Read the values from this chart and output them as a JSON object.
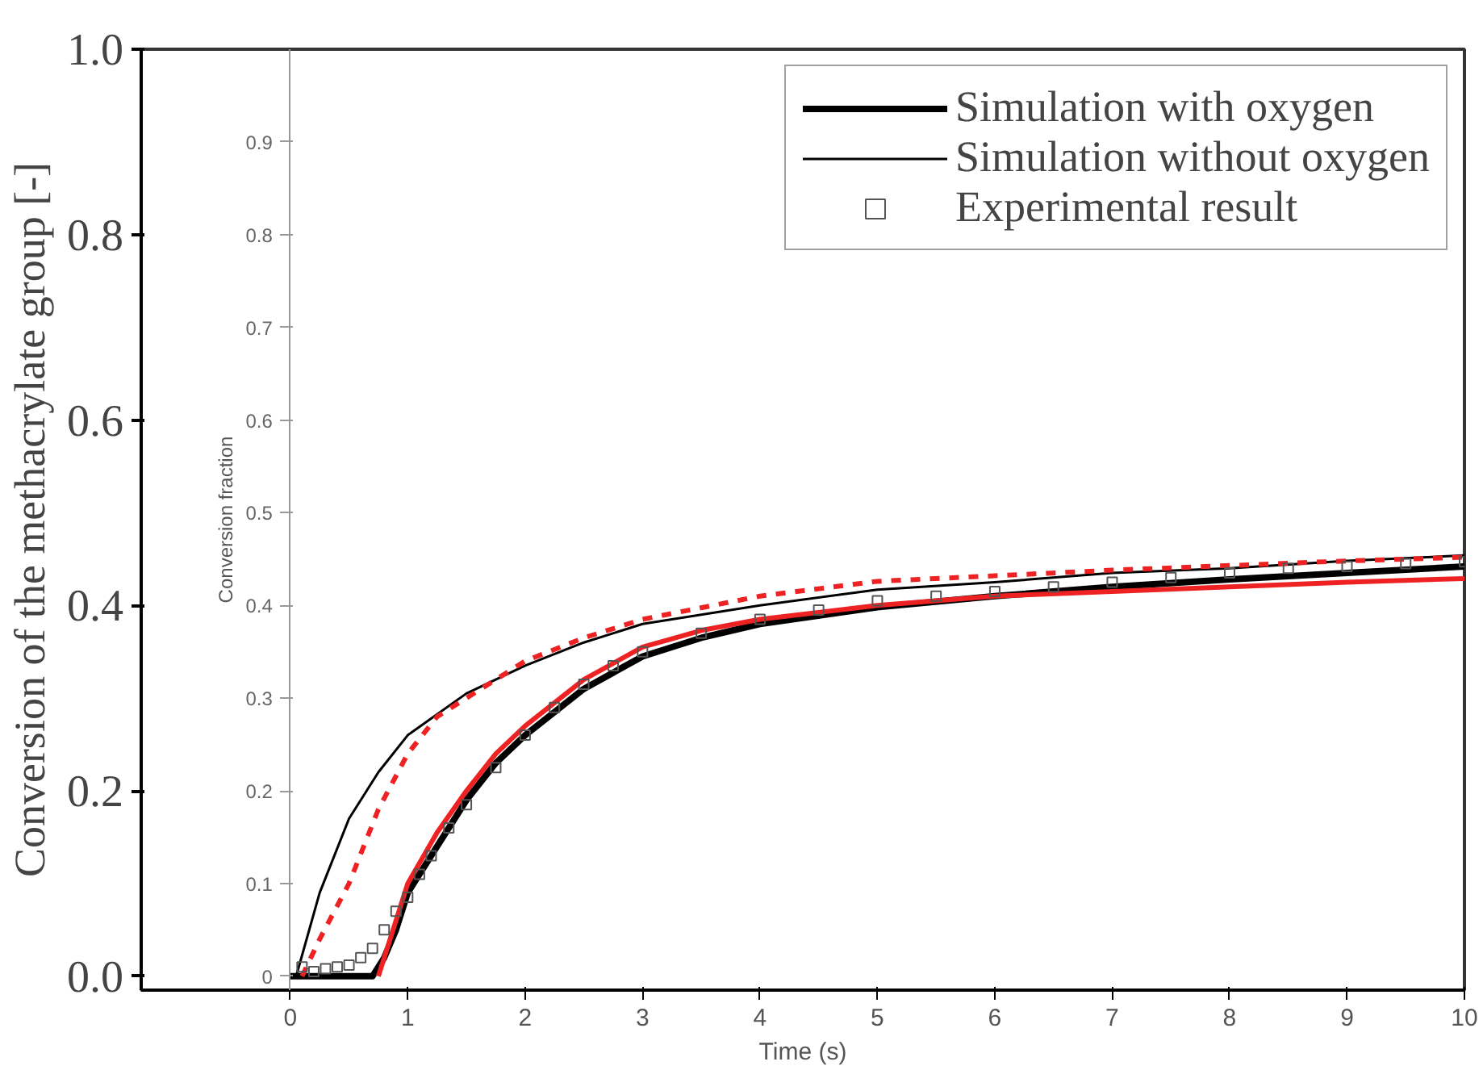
{
  "chart_data": {
    "type": "line",
    "xlabel": "Time (s)",
    "ylabel": "Conversion of the methacrylate group [-]",
    "y2label": "Conversion fraction",
    "xlim": [
      -1.27,
      10
    ],
    "xticks": [
      0,
      1,
      2,
      3,
      4,
      5,
      6,
      7,
      8,
      9,
      10
    ],
    "ylim": [
      -0.015,
      1
    ],
    "yticks": [
      {
        "value": 0,
        "label": "0.0"
      },
      {
        "value": 0.2,
        "label": "0.2"
      },
      {
        "value": 0.4,
        "label": "0.4"
      },
      {
        "value": 0.6,
        "label": "0.6"
      },
      {
        "value": 0.8,
        "label": "0.8"
      },
      {
        "value": 1,
        "label": "1.0"
      }
    ],
    "y2lim": [
      -0.015,
      1
    ],
    "y2ticks": [
      0,
      0.1,
      0.2,
      0.3,
      0.4,
      0.5,
      0.6,
      0.7,
      0.8,
      0.9
    ],
    "legend": "top right",
    "grid": false,
    "series": [
      {
        "name": "Simulation with oxygen",
        "color": "#000000",
        "line_style": "solid",
        "x": [
          0,
          0.7,
          0.8,
          0.9,
          1,
          1.25,
          1.5,
          1.75,
          2,
          2.5,
          3,
          3.5,
          4,
          5,
          6,
          7,
          8,
          9,
          10
        ],
        "values": [
          0,
          0,
          0.02,
          0.05,
          0.09,
          0.14,
          0.19,
          0.23,
          0.26,
          0.31,
          0.345,
          0.365,
          0.38,
          0.398,
          0.41,
          0.42,
          0.428,
          0.435,
          0.442
        ]
      },
      {
        "name": "Simulation without oxygen",
        "color": "#000000",
        "line_style": "solid",
        "x": [
          0.05,
          0.25,
          0.5,
          0.75,
          1,
          1.5,
          2,
          2.5,
          3,
          4,
          5,
          6,
          7,
          8,
          9,
          10
        ],
        "values": [
          0,
          0.09,
          0.17,
          0.22,
          0.26,
          0.305,
          0.335,
          0.36,
          0.38,
          0.4,
          0.417,
          0.425,
          0.435,
          0.44,
          0.448,
          0.454
        ]
      },
      {
        "name": "Experimental result",
        "type": "scatter",
        "marker": "square",
        "color": "#555555",
        "x": [
          0.1,
          0.2,
          0.3,
          0.4,
          0.5,
          0.6,
          0.7,
          0.8,
          0.9,
          1.0,
          1.1,
          1.2,
          1.35,
          1.5,
          1.75,
          2,
          2.25,
          2.5,
          2.75,
          3,
          3.5,
          4,
          4.5,
          5,
          5.5,
          6,
          6.5,
          7,
          7.5,
          8,
          8.5,
          9,
          9.5,
          10
        ],
        "values": [
          0.01,
          0.005,
          0.008,
          0.01,
          0.012,
          0.02,
          0.03,
          0.05,
          0.07,
          0.085,
          0.11,
          0.13,
          0.16,
          0.185,
          0.225,
          0.26,
          0.29,
          0.315,
          0.335,
          0.35,
          0.37,
          0.385,
          0.395,
          0.405,
          0.41,
          0.415,
          0.42,
          0.425,
          0.43,
          0.435,
          0.44,
          0.442,
          0.445,
          0.447
        ]
      },
      {
        "color": "#ee2222",
        "line_style": "solid",
        "x": [
          0.75,
          0.85,
          1,
          1.25,
          1.5,
          1.75,
          2,
          2.5,
          3,
          3.5,
          4,
          5,
          6,
          7,
          8,
          9,
          10
        ],
        "values": [
          0,
          0.04,
          0.1,
          0.155,
          0.2,
          0.24,
          0.27,
          0.32,
          0.355,
          0.373,
          0.385,
          0.4,
          0.41,
          0.415,
          0.42,
          0.425,
          0.429
        ]
      },
      {
        "color": "#ee2222",
        "line_style": "dashed",
        "x": [
          0.1,
          0.25,
          0.5,
          0.75,
          1,
          1.25,
          1.5,
          2,
          2.5,
          3,
          4,
          5,
          6,
          7,
          8,
          9,
          10
        ],
        "values": [
          0,
          0.04,
          0.1,
          0.18,
          0.24,
          0.28,
          0.3,
          0.34,
          0.365,
          0.385,
          0.41,
          0.426,
          0.432,
          0.438,
          0.443,
          0.448,
          0.452
        ]
      }
    ]
  }
}
